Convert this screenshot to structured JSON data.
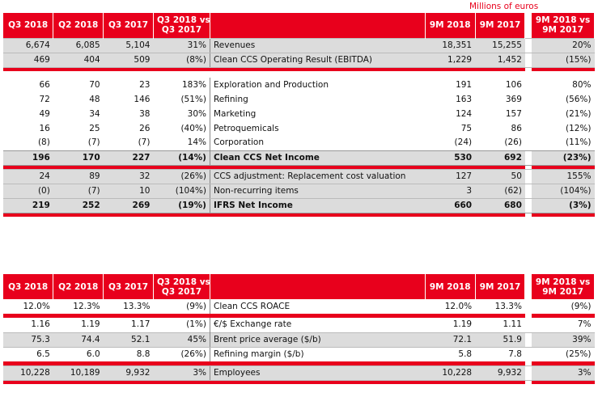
{
  "unit_label": "Millions of euros",
  "headers": {
    "q3_2018": "Q3 2018",
    "q2_2018": "Q2 2018",
    "q3_2017": "Q3 2017",
    "q_var_line1": "Q3 2018 vs",
    "q_var_line2": "Q3 2017",
    "m9_2018": "9M 2018",
    "m9_2017": "9M 2017",
    "m_var_line1": "9M 2018 vs",
    "m_var_line2": "9M 2017"
  },
  "table1": {
    "rows": [
      {
        "q3_2018": "6,674",
        "q2_2018": "6,085",
        "q3_2017": "5,104",
        "q_var": "31%",
        "label": "Revenues",
        "m9_2018": "18,351",
        "m9_2017": "15,255",
        "m_var": "20%"
      },
      {
        "q3_2018": "469",
        "q2_2018": "404",
        "q3_2017": "509",
        "q_var": "(8%)",
        "label": "Clean CCS Operating Result (EBITDA)",
        "m9_2018": "1,229",
        "m9_2017": "1,452",
        "m_var": "(15%)"
      },
      {
        "q3_2018": "66",
        "q2_2018": "70",
        "q3_2017": "23",
        "q_var": "183%",
        "label": "Exploration and Production",
        "m9_2018": "191",
        "m9_2017": "106",
        "m_var": "80%"
      },
      {
        "q3_2018": "72",
        "q2_2018": "48",
        "q3_2017": "146",
        "q_var": "(51%)",
        "label": "Refining",
        "m9_2018": "163",
        "m9_2017": "369",
        "m_var": "(56%)"
      },
      {
        "q3_2018": "49",
        "q2_2018": "34",
        "q3_2017": "38",
        "q_var": "30%",
        "label": "Marketing",
        "m9_2018": "124",
        "m9_2017": "157",
        "m_var": "(21%)"
      },
      {
        "q3_2018": "16",
        "q2_2018": "25",
        "q3_2017": "26",
        "q_var": "(40%)",
        "label": "Petroquemicals",
        "m9_2018": "75",
        "m9_2017": "86",
        "m_var": "(12%)"
      },
      {
        "q3_2018": "(8)",
        "q2_2018": "(7)",
        "q3_2017": "(7)",
        "q_var": "14%",
        "label": "Corporation",
        "m9_2018": "(24)",
        "m9_2017": "(26)",
        "m_var": "(11%)"
      },
      {
        "q3_2018": "196",
        "q2_2018": "170",
        "q3_2017": "227",
        "q_var": "(14%)",
        "label": "Clean CCS Net Income",
        "m9_2018": "530",
        "m9_2017": "692",
        "m_var": "(23%)"
      },
      {
        "q3_2018": "24",
        "q2_2018": "89",
        "q3_2017": "32",
        "q_var": "(26%)",
        "label": "CCS adjustment: Replacement cost valuation",
        "m9_2018": "127",
        "m9_2017": "50",
        "m_var": "155%"
      },
      {
        "q3_2018": "(0)",
        "q2_2018": "(7)",
        "q3_2017": "10",
        "q_var": "(104%)",
        "label": "Non-recurring items",
        "m9_2018": "3",
        "m9_2017": "(62)",
        "m_var": "(104%)"
      },
      {
        "q3_2018": "219",
        "q2_2018": "252",
        "q3_2017": "269",
        "q_var": "(19%)",
        "label": "IFRS Net Income",
        "m9_2018": "660",
        "m9_2017": "680",
        "m_var": "(3%)"
      }
    ]
  },
  "table2": {
    "rows": [
      {
        "q3_2018": "12.0%",
        "q2_2018": "12.3%",
        "q3_2017": "13.3%",
        "q_var": "(9%)",
        "label": "Clean CCS ROACE",
        "m9_2018": "12.0%",
        "m9_2017": "13.3%",
        "m_var": "(9%)"
      },
      {
        "q3_2018": "1.16",
        "q2_2018": "1.19",
        "q3_2017": "1.17",
        "q_var": "(1%)",
        "label": "€/$ Exchange rate",
        "m9_2018": "1.19",
        "m9_2017": "1.11",
        "m_var": "7%"
      },
      {
        "q3_2018": "75.3",
        "q2_2018": "74.4",
        "q3_2017": "52.1",
        "q_var": "45%",
        "label": "Brent price average ($/b)",
        "m9_2018": "72.1",
        "m9_2017": "51.9",
        "m_var": "39%"
      },
      {
        "q3_2018": "6.5",
        "q2_2018": "6.0",
        "q3_2017": "8.8",
        "q_var": "(26%)",
        "label": "Refining margin ($/b)",
        "m9_2018": "5.8",
        "m9_2017": "7.8",
        "m_var": "(25%)"
      },
      {
        "q3_2018": "10,228",
        "q2_2018": "10,189",
        "q3_2017": "9,932",
        "q_var": "3%",
        "label": "Employees",
        "m9_2018": "10,228",
        "m9_2017": "9,932",
        "m_var": "3%"
      }
    ]
  }
}
